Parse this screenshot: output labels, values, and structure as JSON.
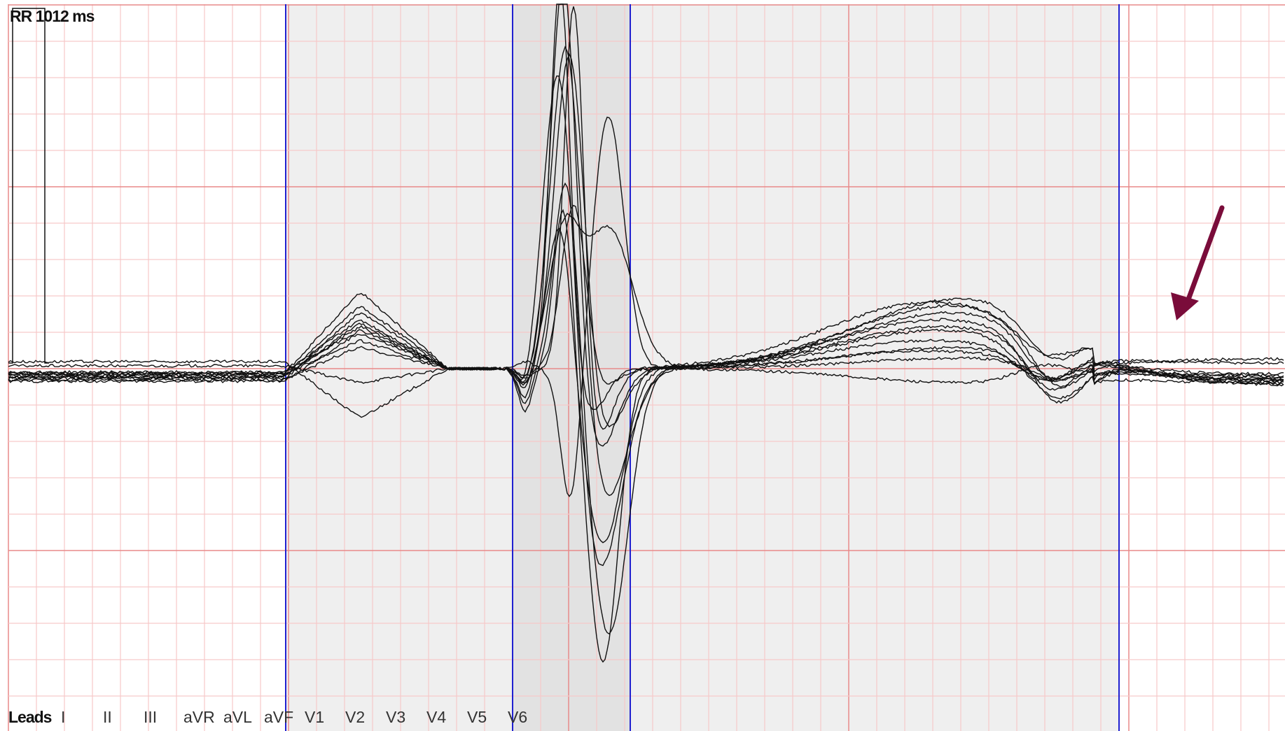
{
  "window": {
    "rr_interval_label": "RR 1012 ms"
  },
  "leads_bar": {
    "title": "Leads",
    "items": [
      "I",
      "II",
      "III",
      "aVR",
      "aVL",
      "aVF",
      "V1",
      "V2",
      "V3",
      "V4",
      "V5",
      "V6"
    ]
  },
  "colors": {
    "grid_minor": "#f6c9c9",
    "grid_major": "#e88a8a",
    "marker_line": "#2020d0",
    "shaded_region": "#efefef",
    "shaded_qrs": "#e2e2e2",
    "trace": "#111111",
    "annotation_arrow": "#7a0c3a"
  },
  "icons": {
    "annotation": "arrow-pointer-icon"
  }
}
